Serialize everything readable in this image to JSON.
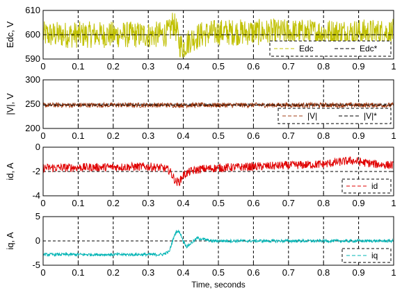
{
  "chart_data": [
    {
      "type": "line",
      "ylabel": "Edc, V",
      "ylim": [
        590,
        610
      ],
      "yticks": [
        590,
        600,
        610
      ],
      "xlim": [
        0,
        1
      ],
      "xticks": [
        "0",
        "0.1",
        "0.2",
        "0.3",
        "0.4",
        "0.5",
        "0.6",
        "0.7",
        "0.8",
        "0.9",
        "1"
      ],
      "grid": true,
      "legend_position": "bottom-right",
      "series": [
        {
          "name": "Edc",
          "color": "#c0c000",
          "style": "solid",
          "mean": 600,
          "ripple": 5.5,
          "x": [
            0,
            0.34,
            0.36,
            0.37,
            0.38,
            0.39,
            0.4,
            0.42,
            0.45,
            0.5,
            1.0
          ],
          "y": [
            600,
            600,
            601,
            605,
            602,
            596,
            595,
            598,
            600,
            601,
            601
          ]
        },
        {
          "name": "Edc*",
          "color": "#000000",
          "style": "dashed",
          "x": [
            0,
            1
          ],
          "y": [
            600,
            600
          ]
        }
      ]
    },
    {
      "type": "line",
      "ylabel": "|V|, V",
      "ylim": [
        200,
        300
      ],
      "yticks": [
        200,
        250,
        300
      ],
      "xlim": [
        0,
        1
      ],
      "xticks": [
        "0",
        "0.1",
        "0.2",
        "0.3",
        "0.4",
        "0.5",
        "0.6",
        "0.7",
        "0.8",
        "0.9",
        "1"
      ],
      "grid": true,
      "legend_position": "bottom-right",
      "series": [
        {
          "name": "|V|",
          "color": "#a03c14",
          "style": "solid",
          "mean": 248,
          "ripple": 5,
          "x": [
            0,
            1
          ],
          "y": [
            248,
            248
          ]
        },
        {
          "name": "|V|*",
          "color": "#000000",
          "style": "dashed",
          "x": [
            0,
            1
          ],
          "y": [
            248,
            248
          ]
        }
      ]
    },
    {
      "type": "line",
      "ylabel": "id, A",
      "ylim": [
        -4,
        0
      ],
      "yticks": [
        -4,
        -2,
        0
      ],
      "xlim": [
        0,
        1
      ],
      "xticks": [
        "0",
        "0.1",
        "0.2",
        "0.3",
        "0.4",
        "0.5",
        "0.6",
        "0.7",
        "0.8",
        "0.9",
        "1"
      ],
      "grid": true,
      "legend_position": "bottom-right",
      "series": [
        {
          "name": "id",
          "color": "#e00000",
          "style": "solid",
          "ripple": 0.35,
          "x": [
            0,
            0.3,
            0.34,
            0.36,
            0.37,
            0.38,
            0.39,
            0.4,
            0.42,
            0.45,
            0.5,
            0.6,
            0.7,
            0.8,
            0.85,
            0.88,
            0.9,
            0.95,
            1.0
          ],
          "y": [
            -1.7,
            -1.6,
            -1.7,
            -1.9,
            -2.4,
            -2.9,
            -2.8,
            -2.3,
            -2.0,
            -1.8,
            -1.7,
            -1.6,
            -1.5,
            -1.4,
            -1.2,
            -1.1,
            -1.2,
            -1.4,
            -1.5
          ]
        }
      ]
    },
    {
      "type": "line",
      "ylabel": "iq, A",
      "ylim": [
        -5,
        5
      ],
      "yticks": [
        -5,
        0,
        5
      ],
      "xlim": [
        0,
        1
      ],
      "xticks": [
        "0",
        "0.1",
        "0.2",
        "0.3",
        "0.4",
        "0.5",
        "0.6",
        "0.7",
        "0.8",
        "0.9",
        "1"
      ],
      "xlabel": "Time, seconds",
      "grid": true,
      "legend_position": "bottom-right",
      "series": [
        {
          "name": "iq",
          "color": "#00b4b4",
          "style": "solid",
          "ripple": 0.3,
          "x": [
            0,
            0.34,
            0.36,
            0.37,
            0.38,
            0.39,
            0.4,
            0.41,
            0.42,
            0.44,
            0.46,
            0.48,
            0.5,
            0.6,
            1.0
          ],
          "y": [
            -2.8,
            -2.8,
            -2.2,
            0.2,
            2.0,
            1.8,
            0.0,
            -1.2,
            -0.6,
            0.6,
            0.3,
            0.0,
            0.0,
            0.0,
            0.0
          ]
        }
      ]
    }
  ]
}
